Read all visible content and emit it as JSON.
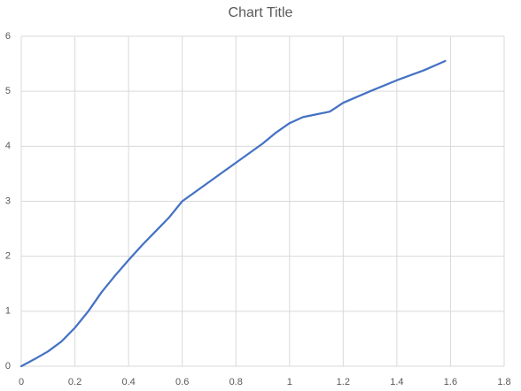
{
  "chart_data": {
    "type": "line",
    "title": "Chart Title",
    "x": [
      0,
      0.05,
      0.1,
      0.15,
      0.2,
      0.25,
      0.3,
      0.35,
      0.4,
      0.45,
      0.5,
      0.55,
      0.6,
      0.7,
      0.8,
      0.9,
      0.95,
      1.0,
      1.05,
      1.1,
      1.15,
      1.2,
      1.3,
      1.4,
      1.5,
      1.58
    ],
    "values": [
      0,
      0.13,
      0.27,
      0.45,
      0.7,
      1.0,
      1.35,
      1.65,
      1.93,
      2.2,
      2.45,
      2.7,
      3.0,
      3.35,
      3.7,
      4.05,
      4.25,
      4.42,
      4.53,
      4.58,
      4.63,
      4.79,
      5.0,
      5.2,
      5.38,
      5.55
    ],
    "color": "#4472c4",
    "xlim": [
      0,
      1.8
    ],
    "xticks": [
      0,
      0.2,
      0.4,
      0.6,
      0.8,
      1,
      1.2,
      1.4,
      1.6,
      1.8
    ],
    "ylim": [
      0,
      6
    ],
    "yticks": [
      0,
      1,
      2,
      3,
      4,
      5,
      6
    ],
    "grid": true
  }
}
